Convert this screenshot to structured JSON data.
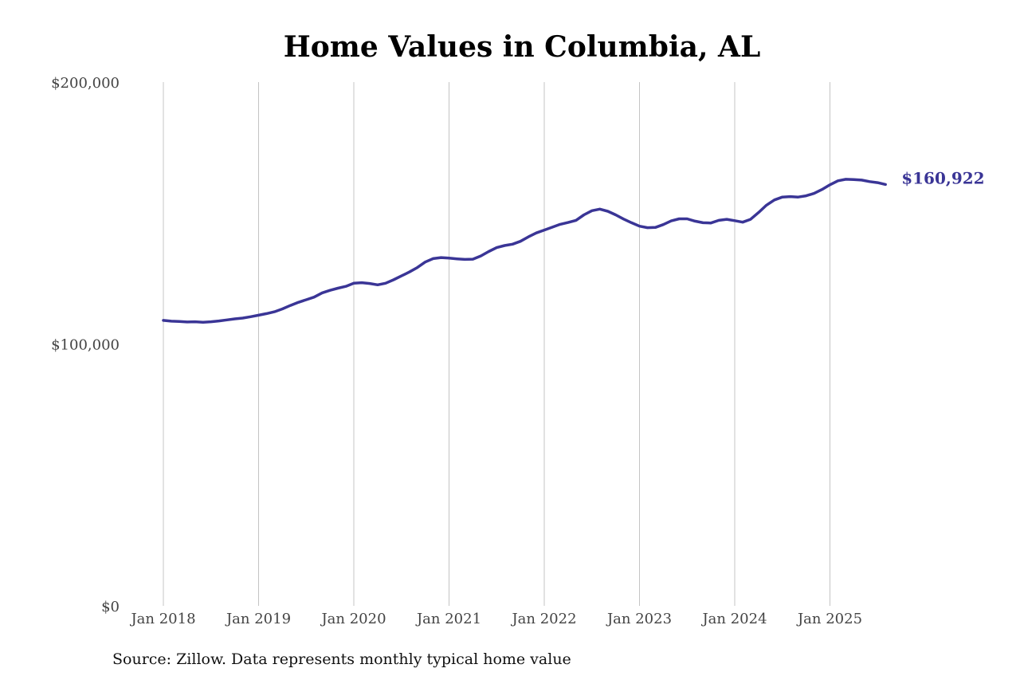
{
  "chart_data": {
    "type": "line",
    "title": "Home Values in Columbia, AL",
    "xlabel": "",
    "ylabel": "",
    "x_tick_labels": [
      "Jan 2018",
      "Jan 2019",
      "Jan 2020",
      "Jan 2021",
      "Jan 2022",
      "Jan 2023",
      "Jan 2024",
      "Jan 2025"
    ],
    "y_tick_labels": [
      "$0",
      "$100,000",
      "$200,000"
    ],
    "ylim": [
      0,
      200000
    ],
    "xlim": [
      "2018-01",
      "2025-08"
    ],
    "grid": "vertical lines at January of each year",
    "legend": "none",
    "line_color": "#3a3596",
    "end_label": "$160,922",
    "series": [
      {
        "x": [
          "2018-01",
          "2018-02",
          "2018-03",
          "2018-04",
          "2018-05",
          "2018-06",
          "2018-07",
          "2018-08",
          "2018-09",
          "2018-10",
          "2018-11",
          "2018-12",
          "2019-01",
          "2019-02",
          "2019-03",
          "2019-04",
          "2019-05",
          "2019-06",
          "2019-07",
          "2019-08",
          "2019-09",
          "2019-10",
          "2019-11",
          "2019-12",
          "2020-01",
          "2020-02",
          "2020-03",
          "2020-04",
          "2020-05",
          "2020-06",
          "2020-07",
          "2020-08",
          "2020-09",
          "2020-10",
          "2020-11",
          "2020-12",
          "2021-01",
          "2021-02",
          "2021-03",
          "2021-04",
          "2021-05",
          "2021-06",
          "2021-07",
          "2021-08",
          "2021-09",
          "2021-10",
          "2021-11",
          "2021-12",
          "2022-01",
          "2022-02",
          "2022-03",
          "2022-04",
          "2022-05",
          "2022-06",
          "2022-07",
          "2022-08",
          "2022-09",
          "2022-10",
          "2022-11",
          "2022-12",
          "2023-01",
          "2023-02",
          "2023-03",
          "2023-04",
          "2023-05",
          "2023-06",
          "2023-07",
          "2023-08",
          "2023-09",
          "2023-10",
          "2023-11",
          "2023-12",
          "2024-01",
          "2024-02",
          "2024-03",
          "2024-04",
          "2024-05",
          "2024-06",
          "2024-07",
          "2024-08",
          "2024-09",
          "2024-10",
          "2024-11",
          "2024-12",
          "2025-01",
          "2025-02",
          "2025-03",
          "2025-04",
          "2025-05",
          "2025-06",
          "2025-07",
          "2025-08"
        ],
        "values": [
          109000,
          108700,
          108600,
          108400,
          108500,
          108300,
          108500,
          108800,
          109200,
          109600,
          109900,
          110400,
          111000,
          111600,
          112300,
          113400,
          114700,
          115900,
          116900,
          117900,
          119500,
          120500,
          121300,
          122000,
          123200,
          123400,
          123100,
          122600,
          123200,
          124500,
          126000,
          127500,
          129200,
          131300,
          132600,
          133000,
          132800,
          132500,
          132300,
          132400,
          133600,
          135300,
          136800,
          137600,
          138100,
          139200,
          140900,
          142400,
          143500,
          144600,
          145700,
          146400,
          147200,
          149300,
          150900,
          151500,
          150700,
          149300,
          147700,
          146300,
          145000,
          144400,
          144500,
          145600,
          147000,
          147800,
          147800,
          146900,
          146300,
          146200,
          147200,
          147600,
          147100,
          146500,
          147600,
          150200,
          153000,
          155000,
          156100,
          156300,
          156100,
          156600,
          157500,
          159000,
          160800,
          162300,
          162900,
          162800,
          162600,
          162000,
          161600,
          160922
        ]
      }
    ]
  },
  "footer": {
    "source": "Source: Zillow. Data represents monthly typical home value"
  }
}
